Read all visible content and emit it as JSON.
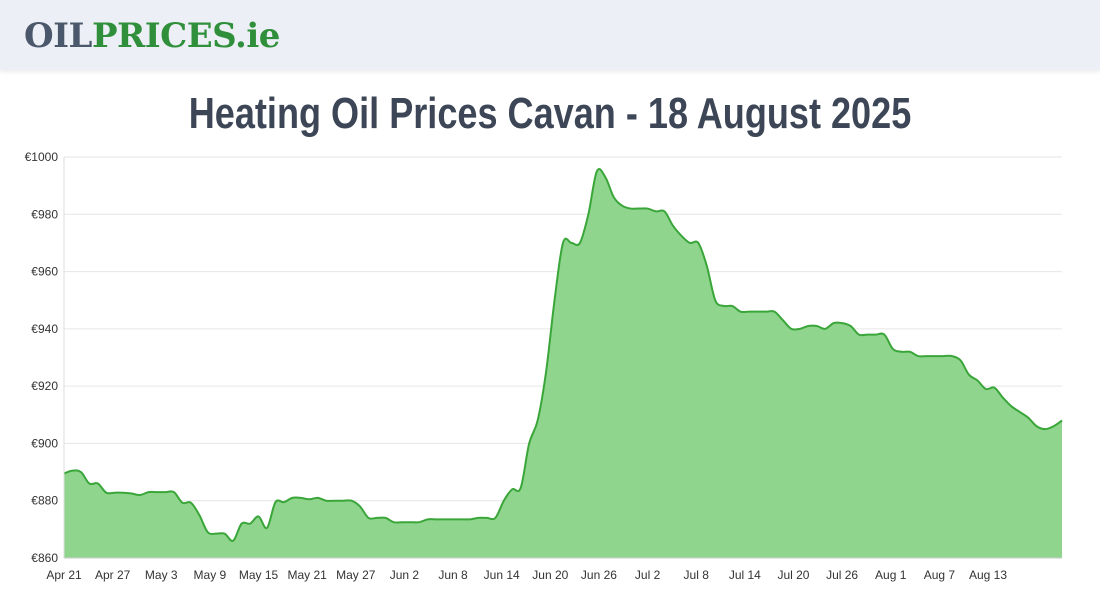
{
  "header": {
    "logo_part1": "OIL",
    "logo_part2": "PRICES.ie"
  },
  "page_title": "Heating Oil Prices Cavan - 18 August 2025",
  "colors": {
    "line": "#3aa63a",
    "fill": "#90d58e",
    "grid": "#e6e6e6",
    "logo_dark": "#4b586b",
    "logo_green": "#2f8f3a"
  },
  "chart_data": {
    "type": "area",
    "title": "",
    "xlabel": "",
    "ylabel": "",
    "x_start_label": "Apr 21",
    "x_ticks": [
      "Apr 21",
      "Apr 27",
      "May 3",
      "May 9",
      "May 15",
      "May 21",
      "May 27",
      "Jun 2",
      "Jun 8",
      "Jun 14",
      "Jun 20",
      "Jun 26",
      "Jul 2",
      "Jul 8",
      "Jul 14",
      "Jul 20",
      "Jul 26",
      "Aug 1",
      "Aug 7",
      "Aug 13"
    ],
    "y_ticks": [
      "€860",
      "€880",
      "€900",
      "€920",
      "€940",
      "€960",
      "€980",
      "€1000"
    ],
    "ylim": [
      860,
      1000
    ],
    "grid": true,
    "legend": "none",
    "series": [
      {
        "values": [
          889.5,
          890.5,
          890,
          886,
          886,
          882.8,
          882.8,
          882.8,
          882.5,
          882,
          883,
          883,
          883,
          883,
          879.3,
          879.3,
          875,
          869,
          868.5,
          868.5,
          866,
          872,
          872,
          874.5,
          870.5,
          879.5,
          879.5,
          881,
          881,
          880.5,
          881,
          880,
          880,
          880,
          880,
          878,
          874,
          874,
          874,
          872.5,
          872.5,
          872.5,
          872.5,
          873.5,
          873.5,
          873.5,
          873.5,
          873.5,
          873.5,
          874,
          874,
          874,
          880,
          884,
          884.5,
          900,
          908,
          925,
          950,
          970,
          970,
          970,
          980,
          995,
          993,
          986,
          983,
          982,
          982,
          982,
          981,
          981,
          976,
          972.5,
          970,
          970,
          962,
          950,
          948,
          948,
          946,
          946,
          946,
          946,
          946,
          943,
          940,
          940,
          941,
          941,
          940,
          942,
          942,
          941,
          938,
          938,
          938,
          938,
          933,
          932,
          932,
          930.5,
          930.5,
          930.5,
          930.5,
          930.5,
          929,
          924,
          922,
          919,
          919.5,
          916,
          913,
          911,
          909,
          906,
          905,
          906,
          908
        ]
      }
    ]
  }
}
